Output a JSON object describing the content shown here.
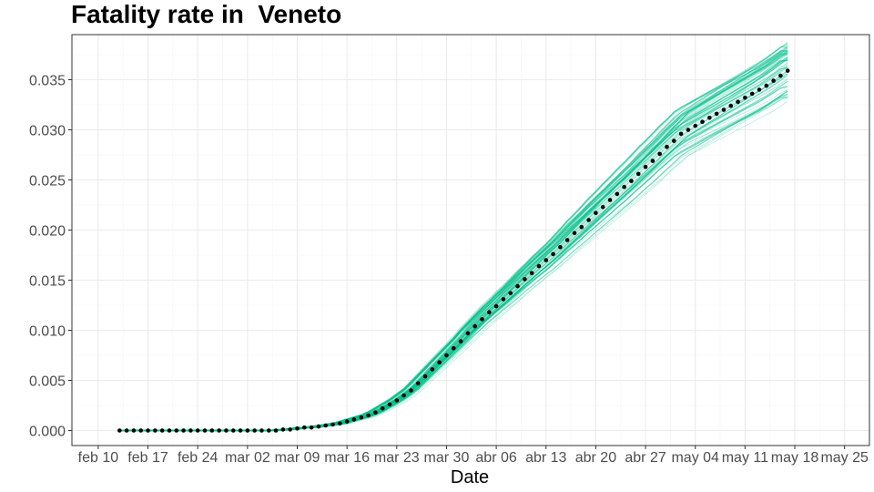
{
  "chart_data": {
    "type": "line",
    "title": "Fatality rate in  Veneto",
    "xlabel": "Date",
    "ylabel": "",
    "x_start": "2020-02-13",
    "x_ticks": [
      "feb 10",
      "feb 17",
      "feb 24",
      "mar 02",
      "mar 09",
      "mar 16",
      "mar 23",
      "mar 30",
      "abr 06",
      "abr 13",
      "abr 20",
      "abr 27",
      "may 04",
      "may 11",
      "may 18",
      "may 25"
    ],
    "y_ticks": [
      "0.000",
      "0.005",
      "0.010",
      "0.015",
      "0.020",
      "0.025",
      "0.030",
      "0.035"
    ],
    "ylim": [
      -0.0015,
      0.0395
    ],
    "grid": true,
    "colors": {
      "simulations": "#00c08b",
      "observed": "#000000",
      "grid": "#ebebeb",
      "panel_border": "#333333"
    },
    "series": [
      {
        "name": "",
        "kind": "observed",
        "values": [
          0,
          0,
          0,
          0,
          0,
          0,
          0,
          0,
          0,
          0,
          0,
          0,
          0,
          0,
          0,
          0,
          0,
          0,
          0,
          0,
          0,
          0,
          0,
          0.0001,
          0.0001,
          0.0002,
          0.0003,
          0.0003,
          0.0004,
          0.0005,
          0.0006,
          0.0007,
          0.0009,
          0.0011,
          0.0013,
          0.0015,
          0.0018,
          0.0022,
          0.0026,
          0.003,
          0.0035,
          0.004,
          0.0047,
          0.0054,
          0.0061,
          0.0068,
          0.0075,
          0.0082,
          0.0089,
          0.0097,
          0.0104,
          0.0111,
          0.0118,
          0.0124,
          0.0131,
          0.0137,
          0.0144,
          0.0151,
          0.0157,
          0.0164,
          0.017,
          0.0176,
          0.0183,
          0.019,
          0.0197,
          0.0203,
          0.021,
          0.0217,
          0.0223,
          0.023,
          0.0236,
          0.0243,
          0.0249,
          0.0256,
          0.0263,
          0.0269,
          0.0276,
          0.0283,
          0.0289,
          0.0296,
          0.03,
          0.0304,
          0.0308,
          0.0312,
          0.0316,
          0.032,
          0.0324,
          0.0328,
          0.0332,
          0.0336,
          0.034,
          0.0344,
          0.0349,
          0.0354,
          0.0359
        ]
      }
    ],
    "simulations": {
      "count": 60,
      "spread_at_end": 0.0032
    }
  }
}
